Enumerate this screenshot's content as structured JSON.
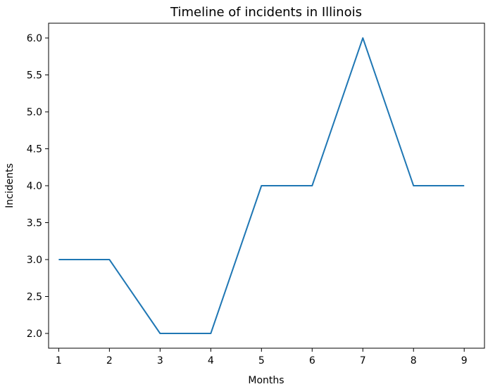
{
  "chart_data": {
    "type": "line",
    "title": "Timeline of incidents in Illinois",
    "xlabel": "Months",
    "ylabel": "Incidents",
    "x": [
      1,
      2,
      3,
      4,
      5,
      6,
      7,
      8,
      9
    ],
    "series": [
      {
        "values": [
          3,
          3,
          2,
          2,
          4,
          4,
          6,
          4,
          4
        ],
        "color": "#1f77b4"
      }
    ],
    "xlim": [
      0.8,
      9.4
    ],
    "ylim": [
      1.8,
      6.2
    ],
    "xticks": [
      "1",
      "2",
      "3",
      "4",
      "5",
      "6",
      "7",
      "8",
      "9"
    ],
    "yticks": [
      "2.0",
      "2.5",
      "3.0",
      "3.5",
      "4.0",
      "4.5",
      "5.0",
      "5.5",
      "6.0"
    ],
    "grid": false,
    "legend": "none"
  }
}
